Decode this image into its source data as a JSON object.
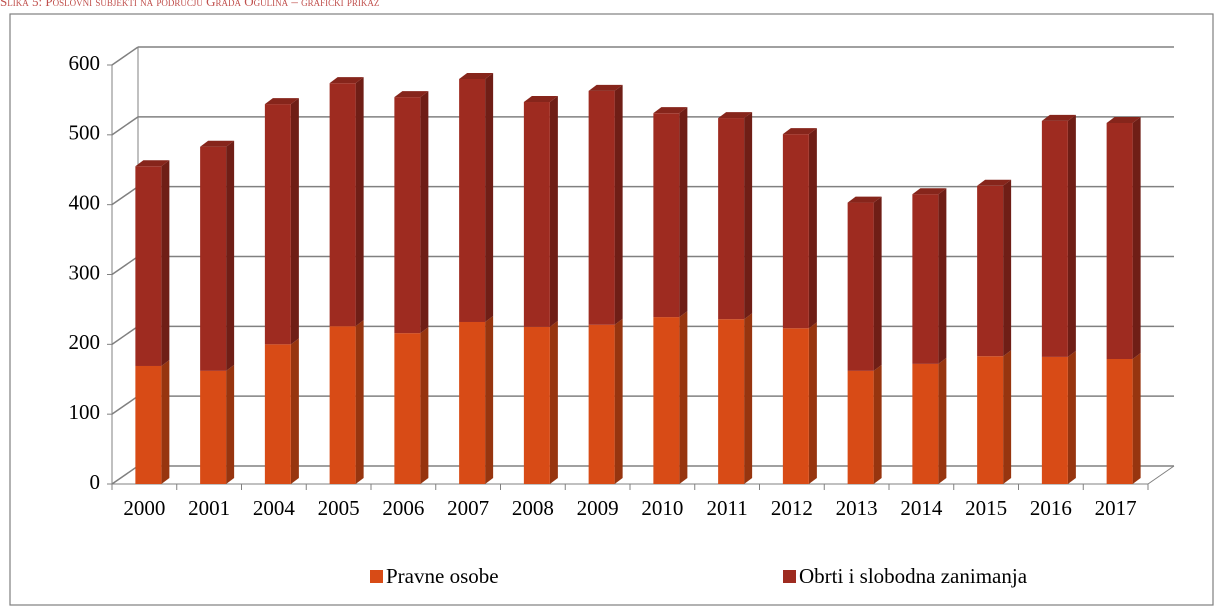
{
  "chart_data": {
    "type": "bar",
    "stacked": true,
    "three_d": true,
    "title": "Slika 5: Poslovni subjekti na području Grada Ogulina – grafički prikaz",
    "categories": [
      "2000",
      "2001",
      "2004",
      "2005",
      "2006",
      "2007",
      "2008",
      "2009",
      "2010",
      "2011",
      "2012",
      "2013",
      "2014",
      "2015",
      "2016",
      "2017"
    ],
    "series": [
      {
        "name": "Pravne osobe",
        "color": "#d84b16",
        "values": [
          169,
          162,
          200,
          226,
          216,
          232,
          225,
          228,
          239,
          236,
          223,
          162,
          172,
          183,
          182,
          179
        ]
      },
      {
        "name": "Obrti i slobodna zanimanja",
        "color": "#9e2b20",
        "values": [
          286,
          321,
          344,
          348,
          338,
          348,
          322,
          335,
          292,
          288,
          278,
          241,
          243,
          244,
          338,
          338
        ]
      }
    ],
    "ylim": [
      0,
      600
    ],
    "yticks": [
      0,
      100,
      200,
      300,
      400,
      500,
      600
    ],
    "grid": true,
    "legend": "bottom"
  }
}
